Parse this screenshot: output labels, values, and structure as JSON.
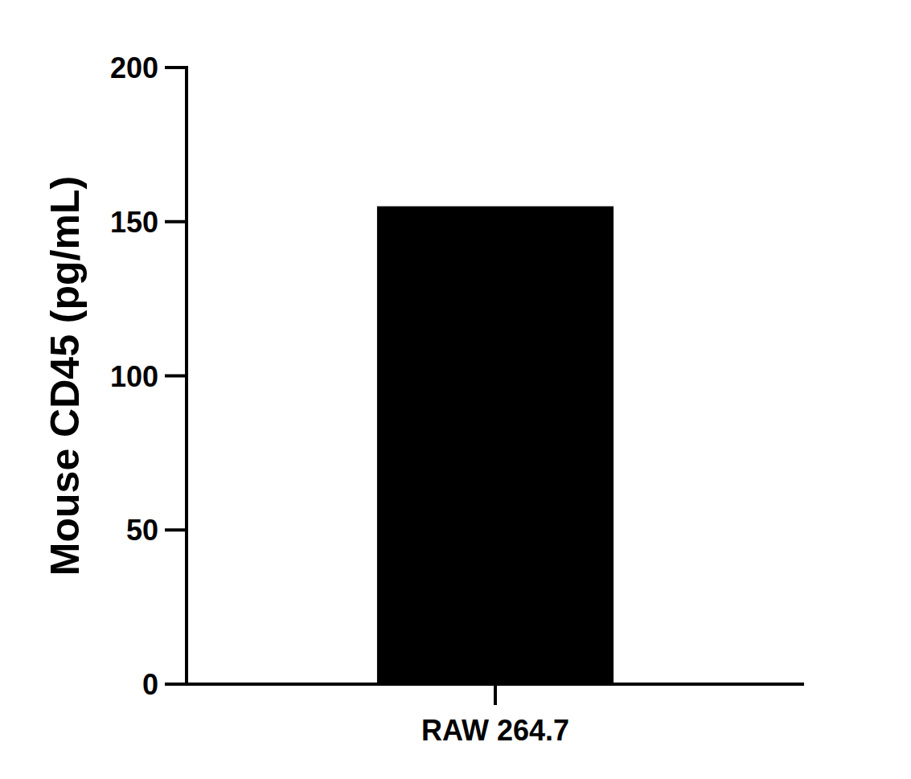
{
  "chart_data": {
    "type": "bar",
    "y_label": "Mouse CD45 (pg/mL)",
    "categories": [
      "RAW 264.7"
    ],
    "values": [
      155
    ],
    "color": "#000000",
    "ylim": [
      0,
      200
    ],
    "yticks": [
      0,
      50,
      100,
      150,
      200
    ],
    "grid": false
  }
}
